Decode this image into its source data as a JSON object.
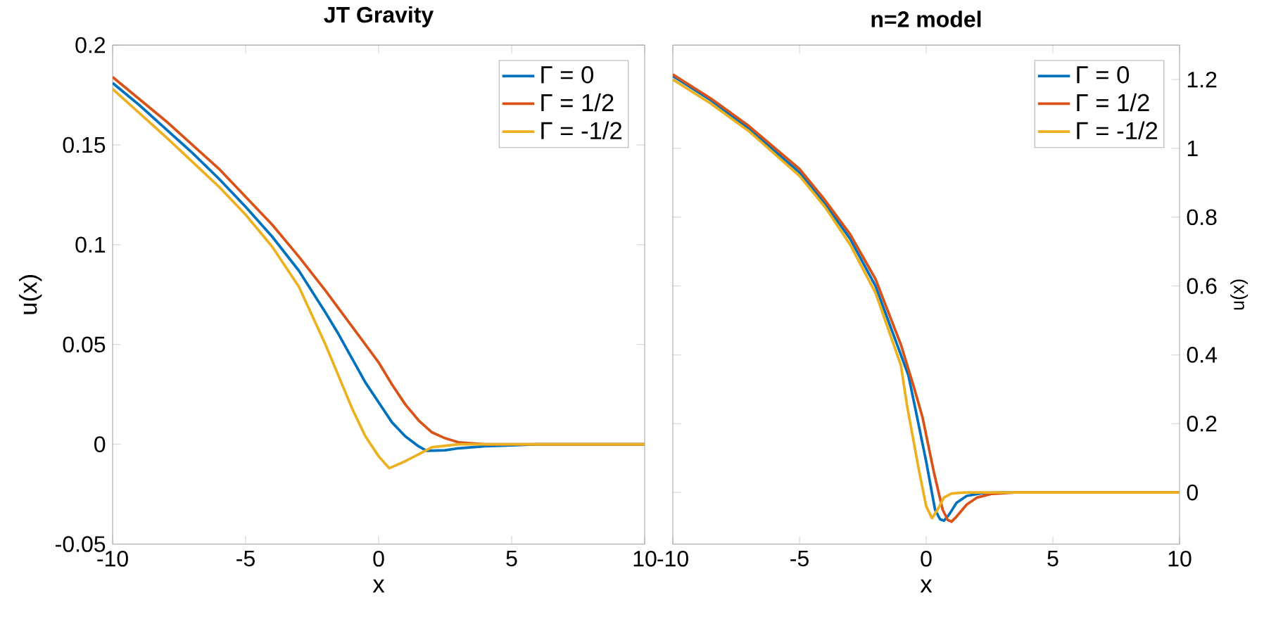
{
  "chart_data": [
    {
      "type": "line",
      "title": "JT Gravity",
      "xlabel": "x",
      "ylabel": "u(x)",
      "xlim": [
        -10,
        10
      ],
      "ylim": [
        -0.05,
        0.2
      ],
      "xticks": [
        -10,
        -5,
        0,
        5,
        10
      ],
      "yticks": [
        -0.05,
        0,
        0.05,
        0.1,
        0.15,
        0.2
      ],
      "legend": "top right",
      "series": [
        {
          "name": "Γ = 0",
          "color": "#0072bd",
          "x": [
            -10,
            -9,
            -8,
            -7,
            -6,
            -5,
            -4,
            -3,
            -2,
            -1.5,
            -1,
            -0.5,
            0,
            0.5,
            1,
            1.5,
            1.8,
            2.5,
            3,
            4,
            5,
            6,
            10
          ],
          "values": [
            0.181,
            0.17,
            0.158,
            0.146,
            0.133,
            0.119,
            0.104,
            0.087,
            0.066,
            0.055,
            0.043,
            0.031,
            0.021,
            0.011,
            0.004,
            -0.001,
            -0.0033,
            -0.003,
            -0.002,
            -0.001,
            -0.0005,
            0,
            0
          ]
        },
        {
          "name": "Γ = 1/2",
          "color": "#d95319",
          "x": [
            -10,
            -8,
            -6,
            -5,
            -4,
            -3,
            -2,
            -1,
            0,
            0.5,
            1,
            1.5,
            2,
            2.5,
            3,
            4,
            10
          ],
          "values": [
            0.184,
            0.162,
            0.138,
            0.124,
            0.11,
            0.094,
            0.077,
            0.059,
            0.041,
            0.03,
            0.02,
            0.012,
            0.006,
            0.003,
            0.001,
            0,
            0
          ]
        },
        {
          "name": "Γ = -1/2",
          "color": "#edb120",
          "x": [
            -10,
            -8,
            -6,
            -5,
            -4,
            -3,
            -2,
            -1.5,
            -1,
            -0.5,
            0,
            0.4,
            1,
            1.5,
            2,
            3,
            10
          ],
          "values": [
            0.178,
            0.154,
            0.129,
            0.115,
            0.099,
            0.079,
            0.05,
            0.034,
            0.018,
            0.004,
            -0.006,
            -0.012,
            -0.0085,
            -0.005,
            -0.0015,
            0,
            0
          ]
        }
      ]
    },
    {
      "type": "line",
      "title": "n=2 model",
      "xlabel": "x",
      "ylabel": "u(x)",
      "xlim": [
        -10,
        10
      ],
      "ylim": [
        -0.15,
        1.3
      ],
      "xticks": [
        -10,
        -5,
        0,
        5,
        10
      ],
      "yticks": [
        0,
        0.2,
        0.4,
        0.6,
        0.8,
        1,
        1.2
      ],
      "legend": "top right",
      "series": [
        {
          "name": "Γ = 0",
          "color": "#0072bd",
          "x": [
            -10,
            -8.5,
            -7,
            -5,
            -4,
            -3,
            -2,
            -1,
            -0.7,
            -0.44,
            0,
            0.35,
            0.55,
            0.7,
            0.9,
            1.2,
            1.6,
            2.2,
            3,
            10
          ],
          "values": [
            1.21,
            1.14,
            1.057,
            0.93,
            0.84,
            0.737,
            0.6,
            0.4,
            0.34,
            0.248,
            0.09,
            -0.05,
            -0.078,
            -0.082,
            -0.065,
            -0.03,
            -0.01,
            -0.002,
            0,
            0
          ]
        },
        {
          "name": "Γ = 1/2",
          "color": "#d95319",
          "x": [
            -10,
            -8.5,
            -7,
            -5,
            -4,
            -3,
            -2,
            -1,
            -0.5,
            -0.15,
            0.3,
            0.65,
            0.85,
            1,
            1.2,
            1.6,
            2,
            2.6,
            3.5,
            10
          ],
          "values": [
            1.215,
            1.145,
            1.065,
            0.94,
            0.85,
            0.75,
            0.62,
            0.43,
            0.31,
            0.22,
            0.06,
            -0.05,
            -0.08,
            -0.085,
            -0.07,
            -0.035,
            -0.015,
            -0.004,
            0,
            0
          ]
        },
        {
          "name": "Γ = -1/2",
          "color": "#edb120",
          "x": [
            -10,
            -8.5,
            -7,
            -5,
            -4,
            -3,
            -2,
            -1,
            -0.75,
            -0.3,
            0,
            0.23,
            0.45,
            0.7,
            1,
            1.5,
            10
          ],
          "values": [
            1.2,
            1.13,
            1.05,
            0.92,
            0.83,
            0.72,
            0.58,
            0.37,
            0.25,
            0.07,
            -0.04,
            -0.075,
            -0.05,
            -0.015,
            -0.003,
            0,
            0
          ]
        }
      ]
    }
  ]
}
